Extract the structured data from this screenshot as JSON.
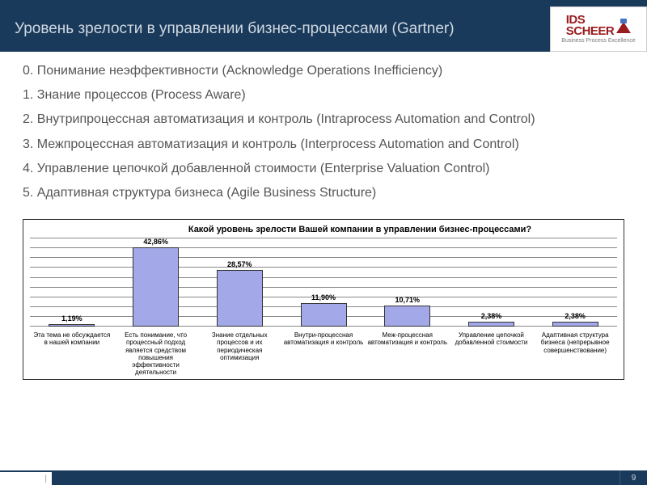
{
  "header": {
    "title": "Уровень зрелости в управлении бизнес-процессами (Gartner)",
    "logo_line1": "IDS",
    "logo_line2": "SCHEER",
    "logo_tagline": "Business Process Excellence"
  },
  "levels": [
    "0. Понимание неэффективности (Acknowledge Operations Inefficiency)",
    "1. Знание процессов (Process Aware)",
    "2. Внутрипроцессная автоматизация и контроль (Intraprocess Automation and Control)",
    "3. Межпроцессная автоматизация и контроль (Interprocess Automation and Control)",
    "4. Управление цепочкой добавленной стоимости (Enterprise Valuation Control)",
    "5. Адаптивная структура бизнеса (Agile Business Structure)"
  ],
  "chart": {
    "type": "bar",
    "title": "Какой уровень зрелости Вашей компании в управлении бизнес-процессами?",
    "bar_color": "#a2a8e8",
    "bar_border": "#333333",
    "grid_color": "#888888",
    "background_color": "#ffffff",
    "ylim": [
      0,
      45
    ],
    "gridlines": 10,
    "bar_width_pct": 55,
    "categories": [
      "Эта тема не обсуждается в нашей компании",
      "Есть понимание, что процессный подход является средством повышения эффективности деятельности",
      "Знание отдельных процессов и их периодическая оптимизация",
      "Внутри-процессная автоматизация и контроль",
      "Меж-процессная автоматизация и контроль",
      "Управление цепочкой добавленной стоимости",
      "Адаптивная структура бизнеса (непрерывное совершенствование)"
    ],
    "values": [
      1.19,
      42.86,
      28.57,
      11.9,
      10.71,
      2.38,
      2.38
    ],
    "value_labels": [
      "1,19%",
      "42,86%",
      "28,57%",
      "11,90%",
      "10,71%",
      "2,38%",
      "2,38%"
    ],
    "title_fontsize": 11,
    "label_fontsize": 8,
    "value_fontsize": 9
  },
  "footer": {
    "divider": "|",
    "page": "9"
  }
}
